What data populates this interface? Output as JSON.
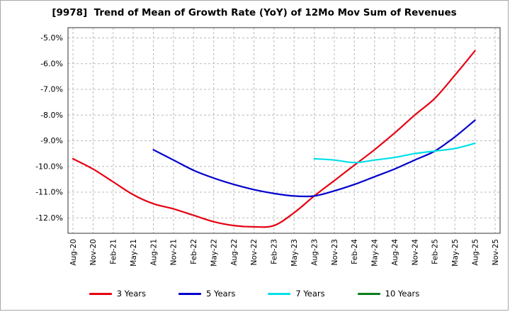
{
  "window": {
    "background": "#ffffff",
    "frame_border_color": "#a8a8a8"
  },
  "chart_data": {
    "type": "line",
    "title": "[9978]  Trend of Mean of Growth Rate (YoY) of 12Mo Mov Sum of Revenues",
    "xlabel": "",
    "ylabel": "",
    "grid": true,
    "grid_color": "#b9b9b9",
    "plot_border_color": "#333333",
    "legend_position": "bottom",
    "ylim": [
      -12.6,
      -4.6
    ],
    "x_tick_labels": [
      "Aug-20",
      "Nov-20",
      "Feb-21",
      "May-21",
      "Aug-21",
      "Nov-21",
      "Feb-22",
      "May-22",
      "Aug-22",
      "Nov-22",
      "Feb-23",
      "May-23",
      "Aug-23",
      "Nov-23",
      "Feb-24",
      "May-24",
      "Aug-24",
      "Nov-24",
      "Feb-25",
      "May-25",
      "Aug-25",
      "Nov-25"
    ],
    "y_ticks": [
      {
        "label": "-5.0%",
        "value": -5
      },
      {
        "label": "-6.0%",
        "value": -6
      },
      {
        "label": "-7.0%",
        "value": -7
      },
      {
        "label": "-8.0%",
        "value": -8
      },
      {
        "label": "-9.0%",
        "value": -9
      },
      {
        "label": "-10.0%",
        "value": -10
      },
      {
        "label": "-11.0%",
        "value": -11
      },
      {
        "label": "-12.0%",
        "value": -12
      }
    ],
    "series": [
      {
        "name": "3 Years",
        "color": "#e60012",
        "start_index": 0,
        "values": [
          -9.7,
          -10.1,
          -10.6,
          -11.1,
          -11.45,
          -11.65,
          -11.9,
          -12.15,
          -12.3,
          -12.35,
          -12.3,
          -11.8,
          -11.15,
          -10.55,
          -9.95,
          -9.35,
          -8.7,
          -8.0,
          -7.35,
          -6.45,
          -5.5
        ]
      },
      {
        "name": "5 Years",
        "color": "#0000cd",
        "start_index": 4,
        "values": [
          -9.35,
          -9.75,
          -10.15,
          -10.45,
          -10.7,
          -10.9,
          -11.05,
          -11.15,
          -11.15,
          -10.95,
          -10.7,
          -10.4,
          -10.1,
          -9.75,
          -9.4,
          -8.85,
          -8.2
        ]
      },
      {
        "name": "7 Years",
        "color": "#00dfe8",
        "start_index": 12,
        "values": [
          -9.7,
          -9.75,
          -9.85,
          -9.75,
          -9.65,
          -9.5,
          -9.4,
          -9.3,
          -9.1
        ]
      },
      {
        "name": "10 Years",
        "color": "#0a7d1e",
        "start_index": 0,
        "values": []
      }
    ]
  }
}
